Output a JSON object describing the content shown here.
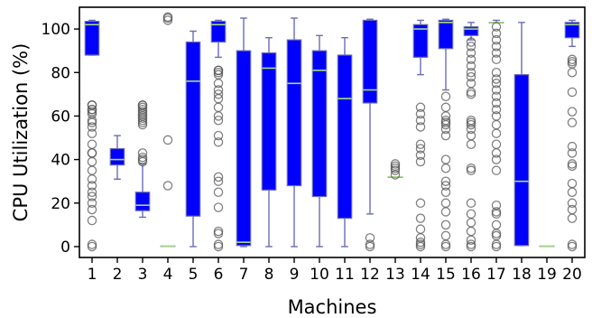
{
  "chart_data": {
    "type": "box",
    "xlabel": "Machines",
    "ylabel": "CPU Utilization (%)",
    "ylim": [
      -5,
      110
    ],
    "yticks": [
      0,
      20,
      40,
      60,
      80,
      100
    ],
    "grid": false,
    "legend": "none",
    "colors": {
      "box": "#0000ff",
      "whisker": "#6b6bb8",
      "median": "#a6e07a",
      "outlier": "#555555"
    },
    "categories": [
      "1",
      "2",
      "3",
      "4",
      "5",
      "6",
      "7",
      "8",
      "9",
      "10",
      "11",
      "12",
      "13",
      "14",
      "15",
      "16",
      "17",
      "18",
      "19",
      "20"
    ],
    "boxes": [
      {
        "machine": "1",
        "whislo": 88,
        "q1": 88,
        "med": 102,
        "q3": 103.5,
        "whishi": 104,
        "fliers": [
          0,
          1,
          12,
          17,
          20,
          23,
          25,
          28,
          31,
          35,
          39,
          43,
          43,
          47,
          52,
          55,
          57,
          58,
          61,
          62,
          63,
          63,
          65,
          65
        ]
      },
      {
        "machine": "2",
        "whislo": 31,
        "q1": 37.5,
        "med": 40,
        "q3": 45,
        "whishi": 51,
        "fliers": []
      },
      {
        "machine": "3",
        "whislo": 13.5,
        "q1": 16.5,
        "med": 19,
        "q3": 25,
        "whishi": 38,
        "fliers": [
          39,
          40,
          41,
          43,
          56,
          57,
          58,
          59,
          60,
          61,
          62,
          63,
          64,
          65,
          65
        ]
      },
      {
        "machine": "4",
        "whislo": 0.3,
        "q1": 0.3,
        "med": 0.3,
        "q3": 0.3,
        "whishi": 0.3,
        "fliers": [
          28,
          49,
          104,
          105,
          105.5
        ]
      },
      {
        "machine": "5",
        "whislo": 0,
        "q1": 14,
        "med": 76,
        "q3": 94,
        "whishi": 99,
        "fliers": []
      },
      {
        "machine": "6",
        "whislo": 87,
        "q1": 94,
        "med": 102,
        "q3": 103.5,
        "whishi": 104,
        "fliers": [
          0,
          1,
          6,
          7,
          18,
          25,
          30,
          32,
          48,
          51,
          58,
          60,
          64,
          68,
          70,
          72,
          75,
          79,
          80,
          81,
          81
        ]
      },
      {
        "machine": "7",
        "whislo": 0,
        "q1": 0.5,
        "med": 2,
        "q3": 90,
        "whishi": 105,
        "fliers": []
      },
      {
        "machine": "8",
        "whislo": 0,
        "q1": 26,
        "med": 82,
        "q3": 89,
        "whishi": 96,
        "fliers": []
      },
      {
        "machine": "9",
        "whislo": 0,
        "q1": 28,
        "med": 75,
        "q3": 95,
        "whishi": 105,
        "fliers": []
      },
      {
        "machine": "10",
        "whislo": 0,
        "q1": 23,
        "med": 81,
        "q3": 90,
        "whishi": 97,
        "fliers": []
      },
      {
        "machine": "11",
        "whislo": 0,
        "q1": 13,
        "med": 68,
        "q3": 88,
        "whishi": 96,
        "fliers": []
      },
      {
        "machine": "12",
        "whislo": 15,
        "q1": 66,
        "med": 72,
        "q3": 104,
        "whishi": 104.5,
        "fliers": [
          0,
          1,
          4
        ]
      },
      {
        "machine": "13",
        "whislo": 32,
        "q1": 32,
        "med": 32,
        "q3": 32,
        "whishi": 32,
        "fliers": [
          33,
          35,
          36,
          37,
          38
        ]
      },
      {
        "machine": "14",
        "whislo": 79,
        "q1": 87,
        "med": 100,
        "q3": 102,
        "whishi": 104,
        "fliers": [
          0,
          1,
          2,
          4,
          8,
          13,
          20,
          39,
          42,
          45,
          47,
          55,
          58,
          61,
          64
        ]
      },
      {
        "machine": "15",
        "whislo": 72,
        "q1": 91,
        "med": 103,
        "q3": 104,
        "whishi": 104.5,
        "fliers": [
          0,
          1,
          5,
          10,
          16,
          20,
          25,
          28,
          30,
          36,
          40,
          51,
          54,
          56,
          57,
          58,
          60,
          64,
          69
        ]
      },
      {
        "machine": "16",
        "whislo": 95,
        "q1": 97,
        "med": 100,
        "q3": 101,
        "whishi": 103,
        "fliers": [
          0,
          1,
          3,
          7,
          11,
          15,
          20,
          35,
          36,
          47,
          51,
          54,
          56,
          57,
          58,
          70,
          71,
          75,
          78,
          80,
          83,
          86,
          89,
          92,
          94
        ]
      },
      {
        "machine": "17",
        "whislo": 103,
        "q1": 103,
        "med": 103,
        "q3": 103,
        "whishi": 104,
        "fliers": [
          0,
          1,
          5,
          6,
          10,
          15,
          16,
          19,
          35,
          40,
          43,
          47,
          52,
          56,
          60,
          63,
          66,
          69,
          72,
          75,
          77,
          80,
          86,
          89,
          92,
          95,
          98,
          101
        ]
      },
      {
        "machine": "18",
        "whislo": 0.5,
        "q1": 0.5,
        "med": 30,
        "q3": 79,
        "whishi": 103,
        "fliers": []
      },
      {
        "machine": "19",
        "whislo": 0.3,
        "q1": 0.3,
        "med": 0.3,
        "q3": 0.3,
        "whishi": 0.3,
        "fliers": []
      },
      {
        "machine": "20",
        "whislo": 92,
        "q1": 96,
        "med": 102,
        "q3": 103,
        "whishi": 104,
        "fliers": [
          0,
          1,
          13,
          17,
          20,
          25,
          29,
          37,
          38,
          43,
          46,
          57,
          62,
          71,
          80,
          84,
          85,
          86
        ]
      }
    ]
  }
}
